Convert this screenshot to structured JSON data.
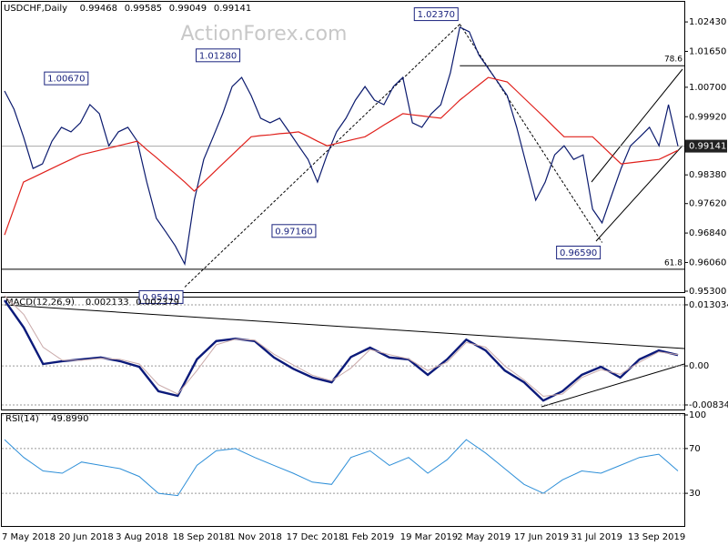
{
  "chart_data": [
    {
      "type": "line",
      "title": "USDCHF,Daily",
      "header_values": [
        0.99468,
        0.99585,
        0.99049,
        0.99141
      ],
      "watermark": "ActionForex.com",
      "categories": [
        "7 May 2018",
        null,
        null,
        null,
        null,
        null,
        "20 Jun 2018",
        null,
        null,
        null,
        null,
        null,
        "3 Aug 2018",
        null,
        null,
        null,
        null,
        null,
        "18 Sep 2018",
        null,
        null,
        null,
        null,
        null,
        "1 Nov 2018",
        null,
        null,
        null,
        null,
        null,
        "17 Dec 2018",
        null,
        null,
        null,
        null,
        null,
        "1 Feb 2019",
        null,
        null,
        null,
        null,
        null,
        "19 Mar 2019",
        null,
        null,
        null,
        null,
        null,
        "2 May 2019",
        null,
        null,
        null,
        null,
        null,
        "17 Jun 2019",
        null,
        null,
        null,
        null,
        null,
        "31 Jul 2019",
        null,
        null,
        null,
        null,
        null,
        "13 Sep 2019",
        null,
        null,
        null,
        null,
        null
      ],
      "series": [
        {
          "color": "#0b1a6e",
          "values": [
            1.006,
            1.0012,
            0.9939,
            0.9855,
            0.9867,
            0.9927,
            0.9964,
            0.9952,
            0.9976,
            1.0024,
            1.0,
            0.9915,
            0.9952,
            0.9964,
            0.9927,
            0.9819,
            0.9723,
            0.9687,
            0.965,
            0.9602,
            0.9771,
            0.9879,
            0.9939,
            1.0,
            1.0072,
            1.0096,
            1.0048,
            0.9988,
            0.9976,
            0.9988,
            0.9952,
            0.9915,
            0.9879,
            0.9819,
            0.9891,
            0.9952,
            0.9988,
            1.0036,
            1.0072,
            1.0036,
            1.0024,
            1.0072,
            1.0096,
            0.9976,
            0.9964,
            1.0,
            1.0024,
            1.0108,
            1.0229,
            1.0217,
            1.0156,
            1.012,
            1.0084,
            1.0048,
            0.9964,
            0.9867,
            0.9771,
            0.9819,
            0.9891,
            0.9915,
            0.9879,
            0.9891,
            0.9747,
            0.9711,
            0.9783,
            0.9855,
            0.9915,
            0.9939,
            0.9964,
            0.9915,
            1.0024,
            0.99141
          ]
        },
        {
          "color": "#e0201b",
          "values": [
            0.9679,
            0.9749,
            0.9819,
            0.9831,
            0.9843,
            0.9855,
            0.9867,
            0.9879,
            0.9891,
            0.9897,
            0.9903,
            0.9909,
            0.9915,
            0.9921,
            0.9927,
            0.9905,
            0.9884,
            0.9862,
            0.9841,
            0.9819,
            0.9795,
            0.9819,
            0.9843,
            0.9867,
            0.9891,
            0.9915,
            0.9939,
            0.9942,
            0.9944,
            0.9947,
            0.9949,
            0.9952,
            0.994,
            0.9927,
            0.9915,
            0.9921,
            0.9927,
            0.9933,
            0.9939,
            0.9954,
            0.997,
            0.9985,
            1.0,
            0.9997,
            0.9994,
            0.9991,
            0.9988,
            1.0012,
            1.0036,
            1.0056,
            1.0076,
            1.0096,
            1.009,
            1.0084,
            1.006,
            1.0036,
            1.0012,
            0.9988,
            0.9963,
            0.9939,
            0.9939,
            0.9939,
            0.9939,
            0.9915,
            0.9891,
            0.9867,
            0.987,
            0.9873,
            0.9876,
            0.9879,
            0.9891,
            0.9903
          ]
        }
      ],
      "ylim": [
        0.953,
        1.0289
      ],
      "yticks": [
        {
          "value": 1.0243,
          "label": "1.02430"
        },
        {
          "value": 1.0165,
          "label": "1.01650"
        },
        {
          "value": 1.007,
          "label": "1.00700"
        },
        {
          "value": 0.9992,
          "label": "0.99920"
        },
        0.99141,
        {
          "value": 0.9838,
          "label": "0.98380"
        },
        {
          "value": 0.9762,
          "label": "0.97620"
        },
        {
          "value": 0.9684,
          "label": "0.96840"
        },
        {
          "value": 0.9606,
          "label": "0.96060"
        },
        {
          "value": 0.953,
          "label": "0.95300"
        }
      ],
      "last_price": 0.99141,
      "annotations": [
        {
          "label": "1.00670",
          "value": 1.0067,
          "x": 9
        },
        {
          "label": "1.01280",
          "value": 1.0128,
          "x": 25
        },
        {
          "label": "1.02370",
          "value": 1.0237,
          "x": 48
        },
        {
          "label": "0.97160",
          "value": 0.9716,
          "x": 33
        },
        {
          "label": "0.96590",
          "value": 0.9659,
          "x": 63
        },
        {
          "label": "0.95410",
          "value": 0.9541,
          "x": 19
        }
      ],
      "levels": [
        {
          "label": "78.6",
          "value": 1.0127
        },
        {
          "label": "61.8",
          "value": 0.9588
        }
      ]
    },
    {
      "type": "line",
      "title": "MACD(12,26,9)",
      "header_values": [
        0.002133,
        0.002379
      ],
      "grid": true,
      "series": [
        {
          "color": "#0b1a7a",
          "values": [
            0.014,
            0.0082,
            0.0004,
            0.001,
            0.0014,
            0.0018,
            0.001,
            -0.0002,
            -0.0054,
            -0.0064,
            0.0014,
            0.0053,
            0.0058,
            0.0053,
            0.0018,
            -0.0006,
            -0.0025,
            -0.0035,
            0.0019,
            0.0039,
            0.0018,
            0.0014,
            -0.0019,
            0.0014,
            0.0056,
            0.0033,
            -0.001,
            -0.0035,
            -0.0074,
            -0.0054,
            -0.0019,
            -0.0002,
            -0.0025,
            0.0014,
            0.0033,
            0.0023
          ]
        },
        {
          "color": "#c9a9a9",
          "values": [
            0.015,
            0.011,
            0.004,
            0.0012,
            0.0012,
            0.0016,
            0.0014,
            0.0004,
            -0.004,
            -0.006,
            -0.001,
            0.0045,
            0.0057,
            0.0055,
            0.0025,
            0.0002,
            -0.002,
            -0.0032,
            -0.0005,
            0.0035,
            0.0024,
            0.0015,
            -0.001,
            0.0008,
            0.005,
            0.004,
            0.0,
            -0.003,
            -0.0065,
            -0.006,
            -0.0025,
            -0.0008,
            -0.0018,
            0.0008,
            0.003,
            0.0024
          ]
        }
      ],
      "ylim": [
        -0.00931,
        0.01439
      ],
      "yticks": [
        0.013034,
        {
          "value": 0,
          "label": "0.00"
        },
        -0.00834
      ]
    },
    {
      "type": "line",
      "title": "RSI(14)",
      "header_values": [
        {
          "value": 49.899,
          "label": "49.8990"
        }
      ],
      "grid": true,
      "series": [
        {
          "color": "#2e8fd8",
          "values": [
            78,
            62,
            50,
            48,
            58,
            55,
            52,
            45,
            30,
            28,
            55,
            68,
            70,
            62,
            55,
            48,
            40,
            38,
            62,
            68,
            55,
            62,
            48,
            60,
            78,
            66,
            52,
            38,
            30,
            42,
            50,
            48,
            55,
            62,
            65,
            50
          ]
        }
      ],
      "ylim": [
        0,
        100
      ],
      "yticks": [
        100,
        70,
        30
      ]
    }
  ]
}
